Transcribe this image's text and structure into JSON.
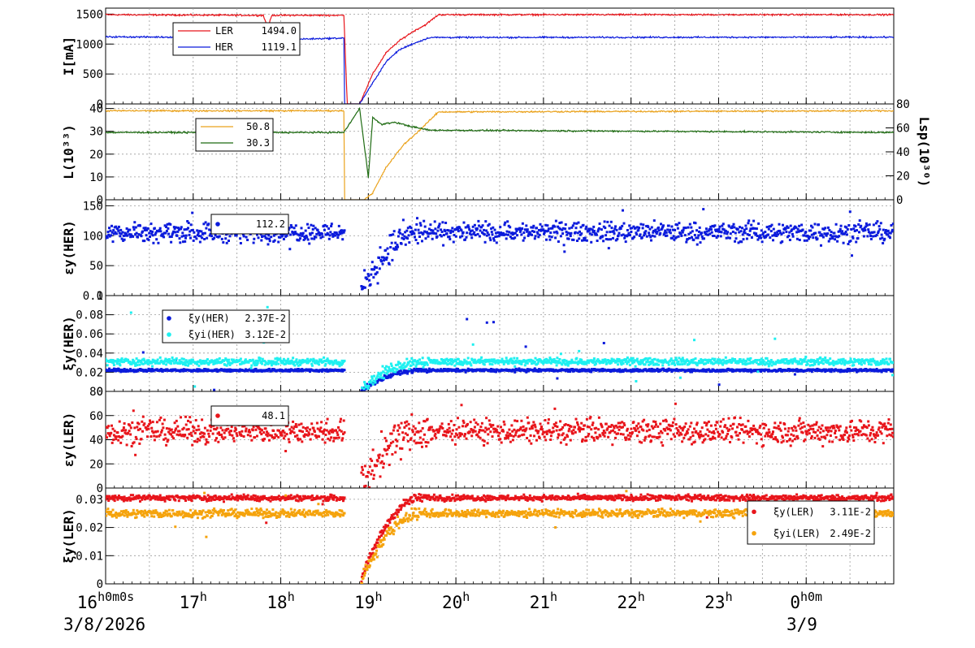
{
  "colors": {
    "red": "#e8151b",
    "blue": "#0b1bdc",
    "orange": "#eaa21c",
    "darkgreen": "#1e6b12",
    "cyan": "#1ef0f0",
    "ptorange": "#f5a30c"
  },
  "chart_data": [
    {
      "type": "line",
      "ylabel": "I[mA]",
      "ylim": [
        0,
        1600
      ],
      "yticks": [
        "0",
        "500",
        "1000",
        "1500"
      ],
      "ytick_values": [
        0,
        500,
        1000,
        1500
      ],
      "legend": {
        "placement": "top-left",
        "entries": [
          {
            "name": "LER",
            "value": "1494.0",
            "color": "red"
          },
          {
            "name": "HER",
            "value": "1119.1",
            "color": "blue"
          }
        ]
      },
      "series": [
        {
          "name": "LER",
          "color": "red",
          "x": [
            0,
            1.8,
            1.85,
            1.9,
            2.6,
            2.72,
            2.76,
            2.9,
            3.05,
            3.2,
            3.35,
            3.5,
            3.65,
            3.8,
            9.0
          ],
          "y": [
            1490,
            1480,
            1280,
            1480,
            1480,
            1480,
            0,
            0,
            500,
            850,
            1050,
            1200,
            1320,
            1490,
            1490
          ]
        },
        {
          "name": "HER",
          "color": "blue",
          "x": [
            0,
            2.1,
            2.15,
            2.72,
            2.73,
            2.9,
            3.05,
            3.2,
            3.35,
            3.5,
            3.7,
            9.0
          ],
          "y": [
            1120,
            1110,
            1080,
            1100,
            0,
            0,
            350,
            700,
            900,
            1000,
            1110,
            1115
          ]
        }
      ]
    },
    {
      "type": "line",
      "ylabel": "L(10³³)",
      "ylabel_right": "Lsp(10³⁰)",
      "ylim": [
        0,
        42
      ],
      "ylim_right": [
        0,
        80
      ],
      "yticks": [
        "0",
        "10",
        "20",
        "30",
        "40"
      ],
      "ytick_values": [
        0,
        10,
        20,
        30,
        40
      ],
      "yticks_right": [
        "0",
        "20",
        "40",
        "60",
        "80"
      ],
      "ytick_values_right": [
        0,
        20,
        40,
        60,
        80
      ],
      "legend": {
        "placement": "top-left",
        "entries": [
          {
            "name": "",
            "value": "50.8",
            "color": "orange"
          },
          {
            "name": "",
            "value": "30.3",
            "color": "darkgreen"
          }
        ]
      },
      "series": [
        {
          "name": "L",
          "color": "orange",
          "x": [
            0,
            2.72,
            2.73,
            2.95,
            3.05,
            3.2,
            3.4,
            3.6,
            3.8,
            9.0
          ],
          "y": [
            39,
            39,
            0,
            0,
            3,
            14,
            24,
            31,
            38.5,
            39
          ]
        },
        {
          "name": "Lsp",
          "color": "darkgreen",
          "x": [
            0,
            2.72,
            2.9,
            3.0,
            3.05,
            3.15,
            3.3,
            3.5,
            3.7,
            9.0
          ],
          "y": [
            29.5,
            29.5,
            40,
            10,
            36,
            33,
            34,
            32,
            30.5,
            29.5
          ]
        }
      ]
    },
    {
      "type": "scatter",
      "ylabel": "εy(HER)",
      "ylim": [
        0,
        160
      ],
      "yticks": [
        "0",
        "50",
        "100",
        "150"
      ],
      "ytick_values": [
        0,
        50,
        100,
        150
      ],
      "legend": {
        "placement": "top-left",
        "entries": [
          {
            "name": "",
            "value": "112.2",
            "color": "blue"
          }
        ]
      },
      "series": [
        {
          "name": "εy(HER)",
          "color": "blue",
          "base": 106,
          "noise": 8,
          "gap": [
            2.72,
            2.9
          ],
          "rec_center": 3.0,
          "rec_val": 60,
          "rec_width": 0.4
        }
      ]
    },
    {
      "type": "scatter",
      "ylabel": "ξy(HER)",
      "ylim": [
        0,
        0.1
      ],
      "yticks": [
        "0",
        "0.02",
        "0.04",
        "0.06",
        "0.08",
        "0.1"
      ],
      "ytick_values": [
        0,
        0.02,
        0.04,
        0.06,
        0.08,
        0.1
      ],
      "legend": {
        "placement": "top-left",
        "entries": [
          {
            "name": "ξy(HER)",
            "value": "2.37E-2",
            "color": "blue"
          },
          {
            "name": "ξyi(HER)",
            "value": "3.12E-2",
            "color": "cyan"
          }
        ]
      },
      "series": [
        {
          "name": "ξy(HER)",
          "color": "blue",
          "base": 0.022,
          "noise": 0.0007
        },
        {
          "name": "ξyi(HER)",
          "color": "cyan",
          "base": 0.031,
          "noise": 0.0018
        }
      ]
    },
    {
      "type": "scatter",
      "ylabel": "εy(LER)",
      "ylim": [
        0,
        80
      ],
      "yticks": [
        "0",
        "20",
        "40",
        "60",
        "80"
      ],
      "ytick_values": [
        0,
        20,
        40,
        60,
        80
      ],
      "legend": {
        "placement": "top-left",
        "entries": [
          {
            "name": "",
            "value": "48.1",
            "color": "red"
          }
        ]
      },
      "series": [
        {
          "name": "εy(LER)",
          "color": "red",
          "base": 47,
          "noise": 5
        }
      ]
    },
    {
      "type": "scatter",
      "ylabel": "ξy(LER)",
      "ylim": [
        0,
        0.034
      ],
      "yticks": [
        "0",
        "0.01",
        "0.02",
        "0.03"
      ],
      "ytick_values": [
        0,
        0.01,
        0.02,
        0.03
      ],
      "legend": {
        "placement": "right",
        "entries": [
          {
            "name": "ξy(LER)",
            "value": "3.11E-2",
            "color": "red"
          },
          {
            "name": "ξyi(LER)",
            "value": "2.49E-2",
            "color": "ptorange"
          }
        ]
      },
      "series": [
        {
          "name": "ξy(LER)",
          "color": "red",
          "base": 0.0305,
          "noise": 0.0005
        },
        {
          "name": "ξyi(LER)",
          "color": "ptorange",
          "base": 0.025,
          "noise": 0.0007
        }
      ]
    }
  ],
  "xaxis": {
    "xlim": [
      0,
      9.0
    ],
    "ticks": [
      {
        "x": 0,
        "label": "16",
        "sup": "h0m0s"
      },
      {
        "x": 1,
        "label": "17",
        "sup": "h"
      },
      {
        "x": 2,
        "label": "18",
        "sup": "h"
      },
      {
        "x": 3,
        "label": "19",
        "sup": "h"
      },
      {
        "x": 4,
        "label": "20",
        "sup": "h"
      },
      {
        "x": 5,
        "label": "21",
        "sup": "h"
      },
      {
        "x": 6,
        "label": "22",
        "sup": "h"
      },
      {
        "x": 7,
        "label": "23",
        "sup": "h"
      },
      {
        "x": 8,
        "label": "0",
        "sup": "h0m"
      }
    ],
    "date_left": "3/8/2026",
    "date_right": "3/9"
  }
}
